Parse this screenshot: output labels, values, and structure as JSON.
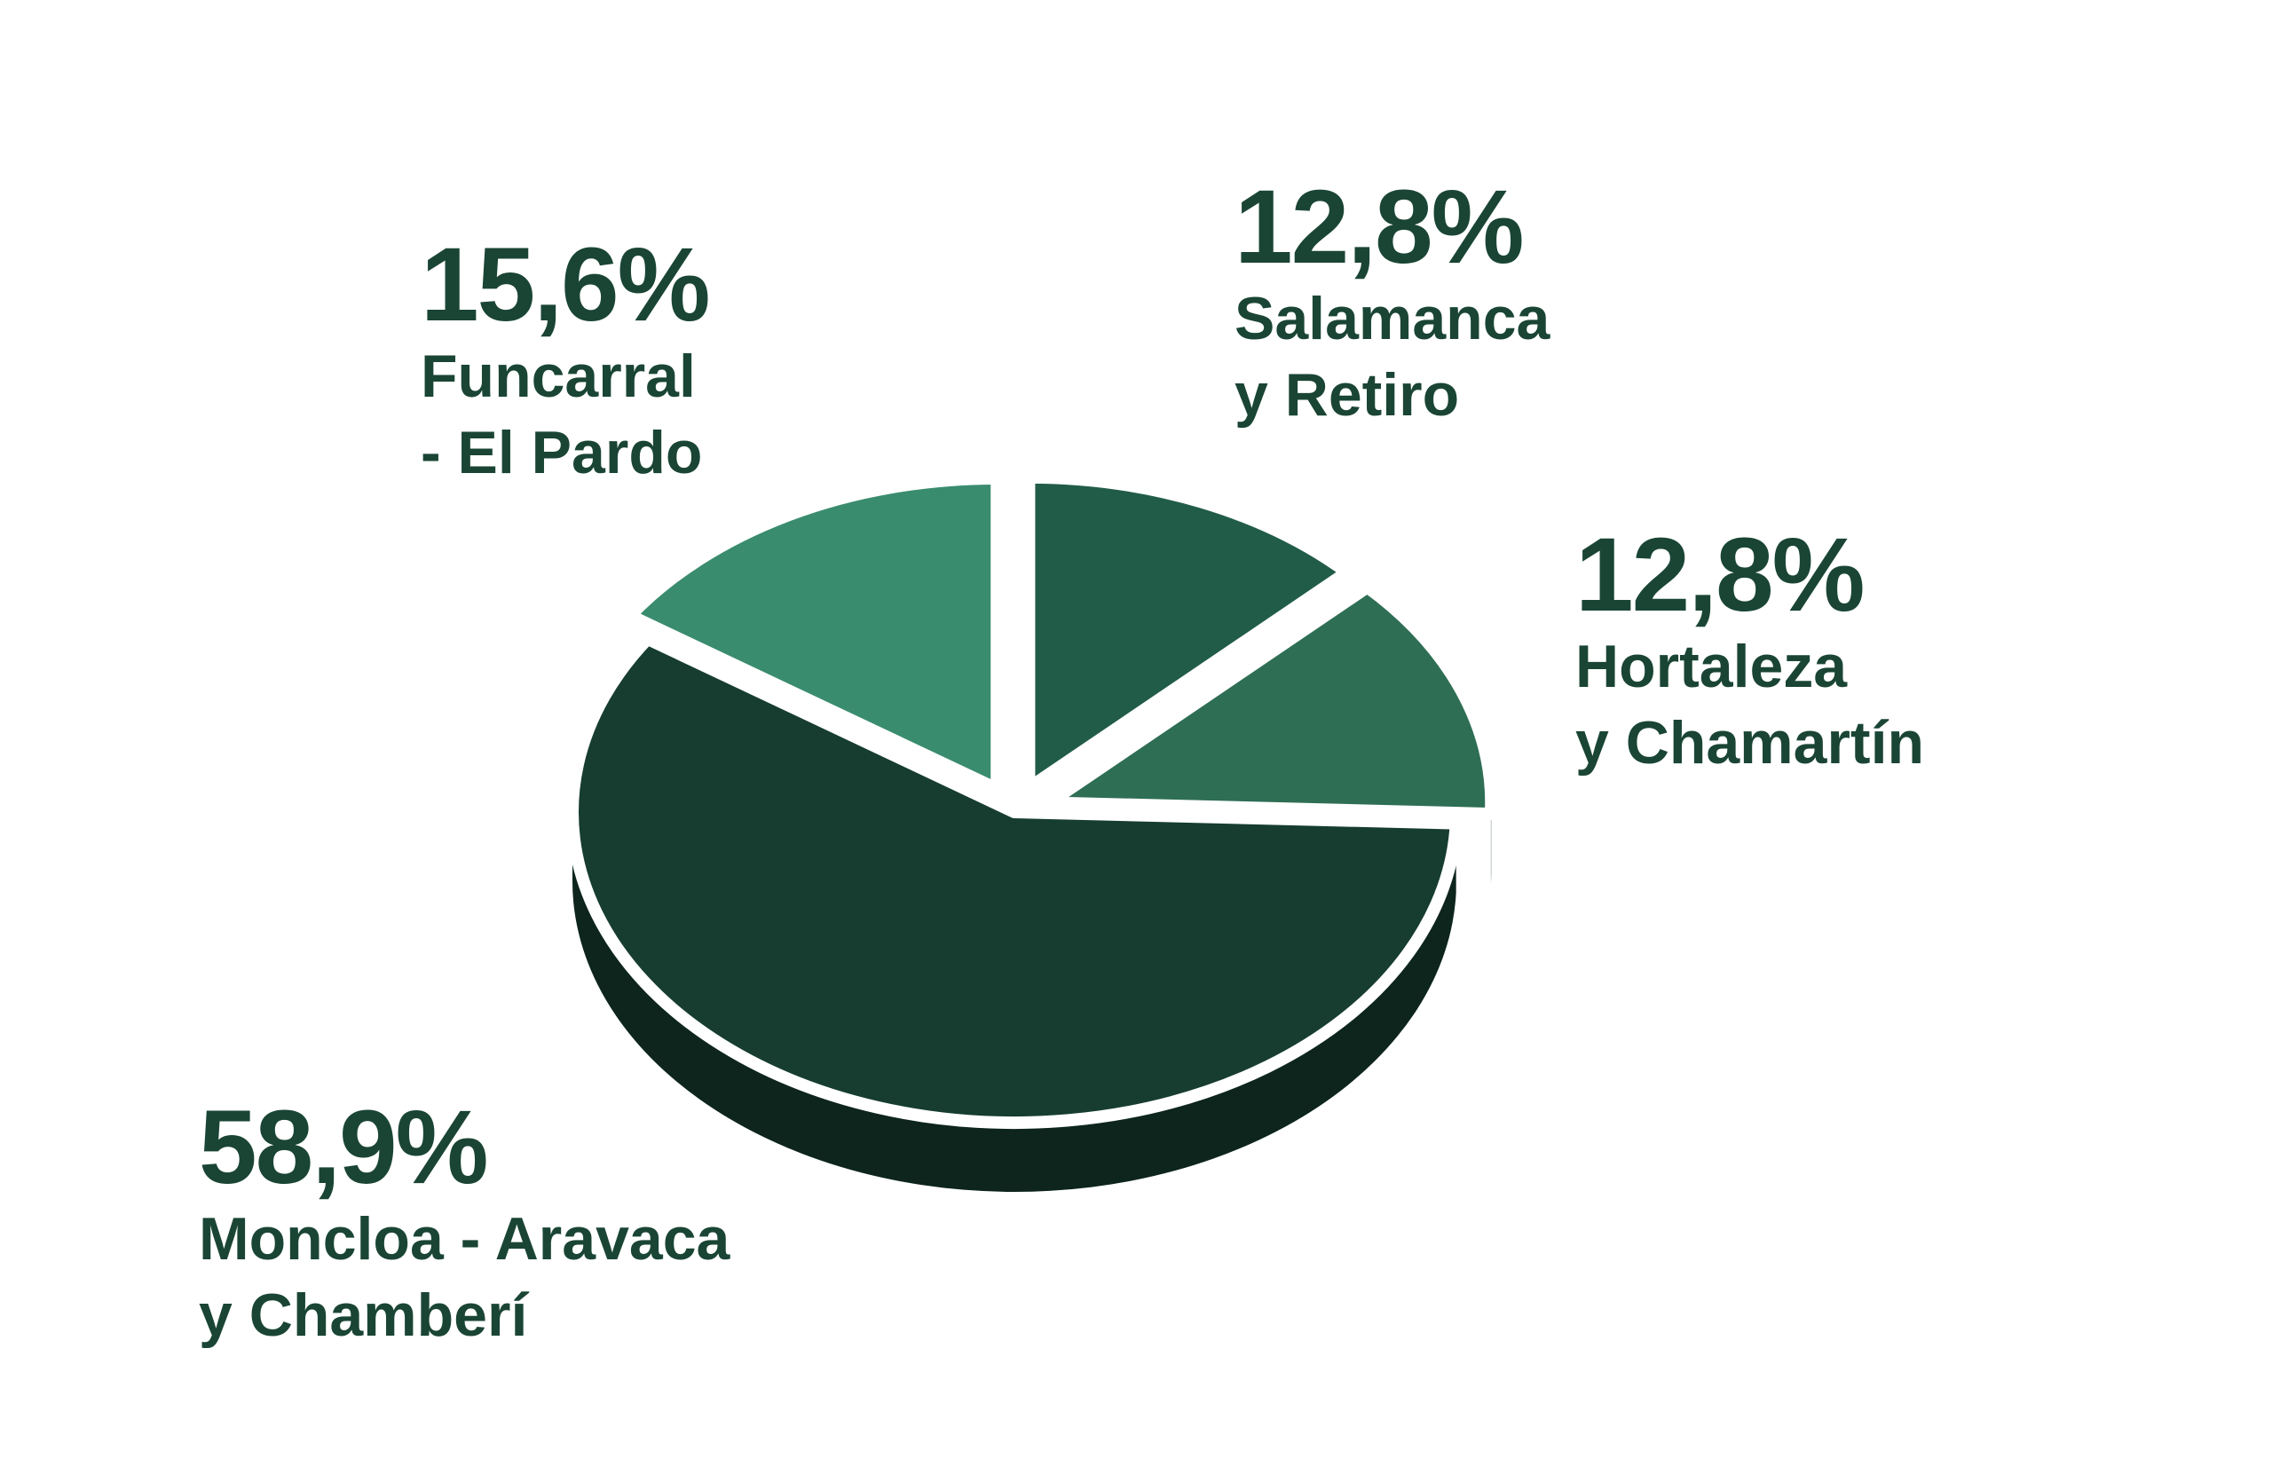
{
  "chart_data": {
    "type": "pie",
    "categories": [
      "Salamanca\ny Retiro",
      "Hortaleza\ny Chamartín",
      "Moncloa - Aravaca\ny Chamberí",
      "Funcarral\n- El Pardo"
    ],
    "values": [
      12.8,
      12.8,
      58.9,
      15.6
    ],
    "value_labels": [
      "12,8%",
      "12,8%",
      "58,9%",
      "15,6%"
    ],
    "colors": [
      "#215c48",
      "#2e6e55",
      "#163d30",
      "#3a8c6e"
    ]
  }
}
